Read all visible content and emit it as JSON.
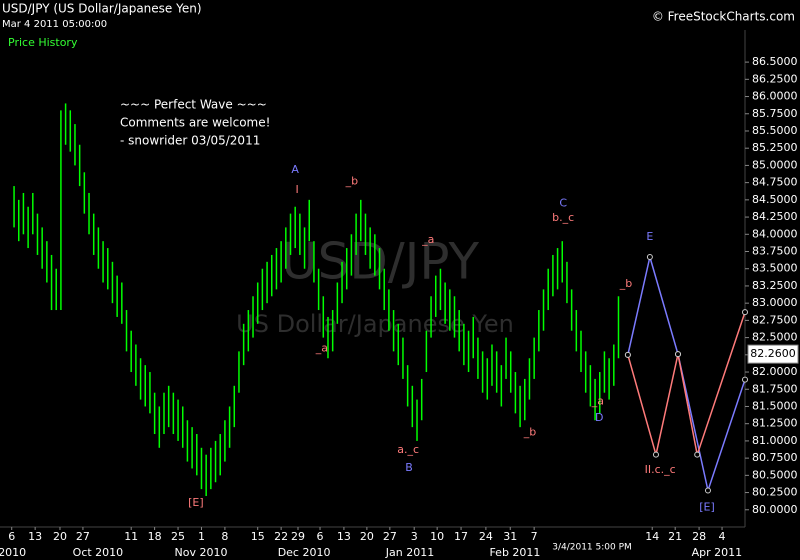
{
  "header": {
    "title": "USD/JPY (US Dollar/Japanese Yen)",
    "timestamp": "Mar 4 2011 05:00:00",
    "panel_label": "Price History",
    "copyright": "© FreeStockCharts.com",
    "note_lines": [
      "~~~ Perfect Wave ~~~",
      "Comments are welcome!",
      "- snowrider  03/05/2011"
    ]
  },
  "chart_data": {
    "type": "ohlc",
    "color": "#00ff00",
    "watermark": "USD/JPY",
    "watermark_subtitle": "US Dollar/Japanese Yen",
    "cursor_label": "3/4/2011 5:00 PM",
    "xlim": [
      -3,
      156
    ],
    "ylim": [
      79.75,
      86.85
    ],
    "last_price": {
      "value": 82.26,
      "label": "82.2600"
    },
    "yticks": [
      {
        "value": 80,
        "label": "80.0000"
      },
      {
        "value": 80.25,
        "label": "80.2500"
      },
      {
        "value": 80.5,
        "label": "80.5000"
      },
      {
        "value": 80.75,
        "label": "80.7500"
      },
      {
        "value": 81,
        "label": "81.0000"
      },
      {
        "value": 81.25,
        "label": "81.2500"
      },
      {
        "value": 81.5,
        "label": "81.5000"
      },
      {
        "value": 81.75,
        "label": "81.7500"
      },
      {
        "value": 82,
        "label": "82.0000"
      },
      {
        "value": 82.25,
        "label": "82.2500"
      },
      {
        "value": 82.5,
        "label": "82.5000"
      },
      {
        "value": 82.75,
        "label": "82.7500"
      },
      {
        "value": 83,
        "label": "83.0000"
      },
      {
        "value": 83.25,
        "label": "83.2500"
      },
      {
        "value": 83.5,
        "label": "83.5000"
      },
      {
        "value": 83.75,
        "label": "83.7500"
      },
      {
        "value": 84,
        "label": "84.0000"
      },
      {
        "value": 84.25,
        "label": "84.2500"
      },
      {
        "value": 84.5,
        "label": "84.5000"
      },
      {
        "value": 84.75,
        "label": "84.7500"
      },
      {
        "value": 85,
        "label": "85.0000"
      },
      {
        "value": 85.25,
        "label": "85.2500"
      },
      {
        "value": 85.5,
        "label": "85.5000"
      },
      {
        "value": 85.75,
        "label": "85.7500"
      },
      {
        "value": 86,
        "label": "86.0000"
      },
      {
        "value": 86.25,
        "label": "86.2500"
      },
      {
        "value": 86.5,
        "label": "86.5000"
      }
    ],
    "xticks": [
      {
        "value": -0.5,
        "label": "6"
      },
      {
        "value": 4.5,
        "label": "13"
      },
      {
        "value": 9.8,
        "label": "20"
      },
      {
        "value": 14.7,
        "label": "27"
      },
      {
        "value": 25,
        "label": "11"
      },
      {
        "value": 30,
        "label": "18"
      },
      {
        "value": 35,
        "label": "25"
      },
      {
        "value": 40,
        "label": "1"
      },
      {
        "value": 45,
        "label": "8"
      },
      {
        "value": 52,
        "label": "15"
      },
      {
        "value": 57,
        "label": "22"
      },
      {
        "value": 60.6,
        "label": "29"
      },
      {
        "value": 65.3,
        "label": "6"
      },
      {
        "value": 70.4,
        "label": "13"
      },
      {
        "value": 75.3,
        "label": "20"
      },
      {
        "value": 80.2,
        "label": "27"
      },
      {
        "value": 85.4,
        "label": "3"
      },
      {
        "value": 90.3,
        "label": "10"
      },
      {
        "value": 95.4,
        "label": "17"
      },
      {
        "value": 100.7,
        "label": "24"
      },
      {
        "value": 105.9,
        "label": "31"
      },
      {
        "value": 111,
        "label": "7"
      },
      {
        "value": 136.2,
        "label": "14"
      },
      {
        "value": 141.1,
        "label": "21"
      },
      {
        "value": 146.2,
        "label": "28"
      },
      {
        "value": 151.1,
        "label": "4"
      }
    ],
    "xticks_months": [
      {
        "value": -0.4,
        "label": "2010"
      },
      {
        "value": 17.9,
        "label": "Oct 2010"
      },
      {
        "value": 39.9,
        "label": "Nov 2010"
      },
      {
        "value": 61.9,
        "label": "Dec 2010"
      },
      {
        "value": 84.5,
        "label": "Jan 2011"
      },
      {
        "value": 106.9,
        "label": "Feb 2011"
      },
      {
        "value": 150,
        "label": "Apr 2011"
      }
    ],
    "bars": [
      [
        84.7,
        84.1
      ],
      [
        84.5,
        83.9
      ],
      [
        84.6,
        84.0
      ],
      [
        84.4,
        83.8
      ],
      [
        84.6,
        84.0
      ],
      [
        84.3,
        83.7
      ],
      [
        84.1,
        83.5
      ],
      [
        83.9,
        83.3
      ],
      [
        83.7,
        82.9
      ],
      [
        83.5,
        82.9
      ],
      [
        85.8,
        82.9
      ],
      [
        85.9,
        85.3
      ],
      [
        85.8,
        85.2
      ],
      [
        85.6,
        85.0
      ],
      [
        85.3,
        84.7
      ],
      [
        84.9,
        84.3
      ],
      [
        84.6,
        84.0
      ],
      [
        84.3,
        83.7
      ],
      [
        84.1,
        83.5
      ],
      [
        83.9,
        83.3
      ],
      [
        83.8,
        83.2
      ],
      [
        83.6,
        83.0
      ],
      [
        83.4,
        82.8
      ],
      [
        83.3,
        82.7
      ],
      [
        82.9,
        82.3
      ],
      [
        82.6,
        82.0
      ],
      [
        82.4,
        81.8
      ],
      [
        82.2,
        81.6
      ],
      [
        82.1,
        81.5
      ],
      [
        82.0,
        81.4
      ],
      [
        81.7,
        81.1
      ],
      [
        81.5,
        80.9
      ],
      [
        81.7,
        81.1
      ],
      [
        81.8,
        81.2
      ],
      [
        81.7,
        81.1
      ],
      [
        81.6,
        81.0
      ],
      [
        81.5,
        80.9
      ],
      [
        81.3,
        80.7
      ],
      [
        81.2,
        80.6
      ],
      [
        81.1,
        80.5
      ],
      [
        80.9,
        80.3
      ],
      [
        80.8,
        80.2
      ],
      [
        80.9,
        80.3
      ],
      [
        81.0,
        80.4
      ],
      [
        81.1,
        80.5
      ],
      [
        81.3,
        80.7
      ],
      [
        81.5,
        80.9
      ],
      [
        81.8,
        81.2
      ],
      [
        82.3,
        81.7
      ],
      [
        82.7,
        82.1
      ],
      [
        82.9,
        82.3
      ],
      [
        83.1,
        82.5
      ],
      [
        83.3,
        82.7
      ],
      [
        83.5,
        82.9
      ],
      [
        83.6,
        83.0
      ],
      [
        83.7,
        83.1
      ],
      [
        83.8,
        83.2
      ],
      [
        83.9,
        83.3
      ],
      [
        84.1,
        83.5
      ],
      [
        84.3,
        83.7
      ],
      [
        84.4,
        83.8
      ],
      [
        84.3,
        83.7
      ],
      [
        84.1,
        83.5
      ],
      [
        84.5,
        83.9
      ],
      [
        83.9,
        83.3
      ],
      [
        83.5,
        82.9
      ],
      [
        83.1,
        82.5
      ],
      [
        82.8,
        82.2
      ],
      [
        82.9,
        82.3
      ],
      [
        83.3,
        82.7
      ],
      [
        83.6,
        83.0
      ],
      [
        83.8,
        83.2
      ],
      [
        84.0,
        83.4
      ],
      [
        84.3,
        83.7
      ],
      [
        84.5,
        83.9
      ],
      [
        84.3,
        83.7
      ],
      [
        84.1,
        83.5
      ],
      [
        84.0,
        83.4
      ],
      [
        83.8,
        83.2
      ],
      [
        83.5,
        82.9
      ],
      [
        83.2,
        82.6
      ],
      [
        82.9,
        82.3
      ],
      [
        82.7,
        82.1
      ],
      [
        82.5,
        81.9
      ],
      [
        82.1,
        81.5
      ],
      [
        81.8,
        81.2
      ],
      [
        81.6,
        81.0
      ],
      [
        81.9,
        81.3
      ],
      [
        82.6,
        82.0
      ],
      [
        83.1,
        82.5
      ],
      [
        83.4,
        82.8
      ],
      [
        83.5,
        82.9
      ],
      [
        83.3,
        82.7
      ],
      [
        83.2,
        82.6
      ],
      [
        83.1,
        82.5
      ],
      [
        82.9,
        82.3
      ],
      [
        82.7,
        82.1
      ],
      [
        82.6,
        82.0
      ],
      [
        82.8,
        82.2
      ],
      [
        82.5,
        81.9
      ],
      [
        82.3,
        81.7
      ],
      [
        82.2,
        81.6
      ],
      [
        82.4,
        81.8
      ],
      [
        82.3,
        81.7
      ],
      [
        82.1,
        81.5
      ],
      [
        82.5,
        81.9
      ],
      [
        82.3,
        81.7
      ],
      [
        82.0,
        81.4
      ],
      [
        81.8,
        81.2
      ],
      [
        81.9,
        81.3
      ],
      [
        82.2,
        81.6
      ],
      [
        82.5,
        81.9
      ],
      [
        82.9,
        82.3
      ],
      [
        83.2,
        82.6
      ],
      [
        83.5,
        82.9
      ],
      [
        83.7,
        83.1
      ],
      [
        83.8,
        83.2
      ],
      [
        83.9,
        83.3
      ],
      [
        83.6,
        83.0
      ],
      [
        83.2,
        82.6
      ],
      [
        82.9,
        82.3
      ],
      [
        82.6,
        82.0
      ],
      [
        82.3,
        81.7
      ],
      [
        82.1,
        81.5
      ],
      [
        81.9,
        81.3
      ],
      [
        82.0,
        81.4
      ],
      [
        82.3,
        81.7
      ],
      [
        82.2,
        81.6
      ],
      [
        82.4,
        81.8
      ],
      [
        83.1,
        82.2
      ]
    ],
    "projections": [
      {
        "color": "#7b7bff",
        "x": [
          131,
          135.7,
          141.7,
          148.1,
          156
        ],
        "y": [
          82.25,
          83.67,
          82.26,
          80.28,
          81.89
        ]
      },
      {
        "color": "#ff7b7b",
        "x": [
          131,
          137,
          141.7,
          145.8,
          156
        ],
        "y": [
          82.25,
          80.8,
          82.26,
          80.8,
          82.87
        ]
      }
    ],
    "annotations": [
      {
        "text": "A",
        "x": 60,
        "y": 84.93,
        "color": "#7b7bff"
      },
      {
        "text": "I",
        "x": 60.4,
        "y": 84.64,
        "color": "#ff7b7b"
      },
      {
        "text": "_b",
        "x": 72.1,
        "y": 84.77,
        "color": "#ff7b7b"
      },
      {
        "text": "_a",
        "x": 65.7,
        "y": 82.34,
        "color": "#ff7b7b"
      },
      {
        "text": "_a",
        "x": 88.4,
        "y": 83.92,
        "color": "#ff7b7b"
      },
      {
        "text": "a._c",
        "x": 84.1,
        "y": 80.87,
        "color": "#ff7b7b"
      },
      {
        "text": "B",
        "x": 84.3,
        "y": 80.61,
        "color": "#7b7bff"
      },
      {
        "text": "C",
        "x": 117.2,
        "y": 84.45,
        "color": "#7b7bff"
      },
      {
        "text": "b._c",
        "x": 117.2,
        "y": 84.24,
        "color": "#ff7b7b"
      },
      {
        "text": "_b",
        "x": 110.1,
        "y": 81.12,
        "color": "#ff7b7b"
      },
      {
        "text": "_b",
        "x": 130.6,
        "y": 83.28,
        "color": "#ff7b7b"
      },
      {
        "text": "_a",
        "x": 124.6,
        "y": 81.57,
        "color": "#ff7b7b"
      },
      {
        "text": "D",
        "x": 124.9,
        "y": 81.33,
        "color": "#7b7bff"
      },
      {
        "text": "E",
        "x": 135.7,
        "y": 83.96,
        "color": "#7b7bff"
      },
      {
        "text": "II.c._c",
        "x": 137.9,
        "y": 80.58,
        "color": "#ff7b7b"
      },
      {
        "text": "[E]",
        "x": 38.8,
        "y": 80.1,
        "color": "#ff7b7b"
      },
      {
        "text": "[E]",
        "x": 147.9,
        "y": 80.03,
        "color": "#7b7bff"
      }
    ]
  }
}
